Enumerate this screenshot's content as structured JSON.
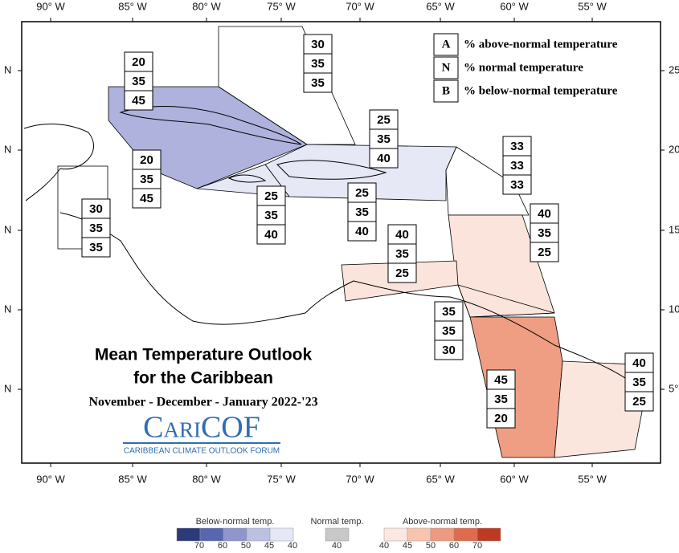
{
  "header": {
    "title_line1": "Mean Temperature Outlook",
    "title_line2": "for the Caribbean",
    "subtitle": "November - December - January 2022-'23",
    "logo": "CariCOF",
    "logo_caption": "CARIBBEAN CLIMATE OUTLOOK FORUM"
  },
  "key": [
    {
      "letter": "A",
      "text": "% above-normal temperature"
    },
    {
      "letter": "N",
      "text": "% normal temperature"
    },
    {
      "letter": "B",
      "text": "% below-normal temperature"
    }
  ],
  "lon_labels": [
    "90° W",
    "85° W",
    "80° W",
    "75° W",
    "70° W",
    "65° W",
    "60° W",
    "55° W"
  ],
  "lat_labels_left": [
    "N",
    "N",
    "N",
    "N",
    "N"
  ],
  "lat_labels_right": [
    "25",
    "20",
    "15",
    "10",
    "5°"
  ],
  "regions": [
    {
      "above": 20,
      "normal": 35,
      "below": 45
    },
    {
      "above": 30,
      "normal": 35,
      "below": 35
    },
    {
      "above": 25,
      "normal": 35,
      "below": 40
    },
    {
      "above": 33,
      "normal": 33,
      "below": 33
    },
    {
      "above": 20,
      "normal": 35,
      "below": 45
    },
    {
      "above": 25,
      "normal": 35,
      "below": 40
    },
    {
      "above": 25,
      "normal": 35,
      "below": 40
    },
    {
      "above": 30,
      "normal": 35,
      "below": 35
    },
    {
      "above": 40,
      "normal": 35,
      "below": 25
    },
    {
      "above": 40,
      "normal": 35,
      "below": 25
    },
    {
      "above": 35,
      "normal": 35,
      "below": 30
    },
    {
      "above": 45,
      "normal": 35,
      "below": 20
    },
    {
      "above": 40,
      "normal": 35,
      "below": 25
    }
  ],
  "legend": {
    "below": {
      "title": "Below-normal temp.",
      "labels": [
        70,
        60,
        50,
        45,
        40
      ],
      "colors": [
        "#2b3a78",
        "#5866b0",
        "#8f96cc",
        "#bcc1e4",
        "#e4e7f5"
      ]
    },
    "normal": {
      "title": "Normal temp.",
      "labels": [
        40
      ],
      "colors": [
        "#c8c8c8"
      ]
    },
    "above": {
      "title": "Above-normal temp.",
      "labels": [
        40,
        45,
        50,
        60,
        70
      ],
      "colors": [
        "#fde7df",
        "#f8c4b0",
        "#ee9a80",
        "#df6a4d",
        "#bf3a22"
      ]
    }
  }
}
